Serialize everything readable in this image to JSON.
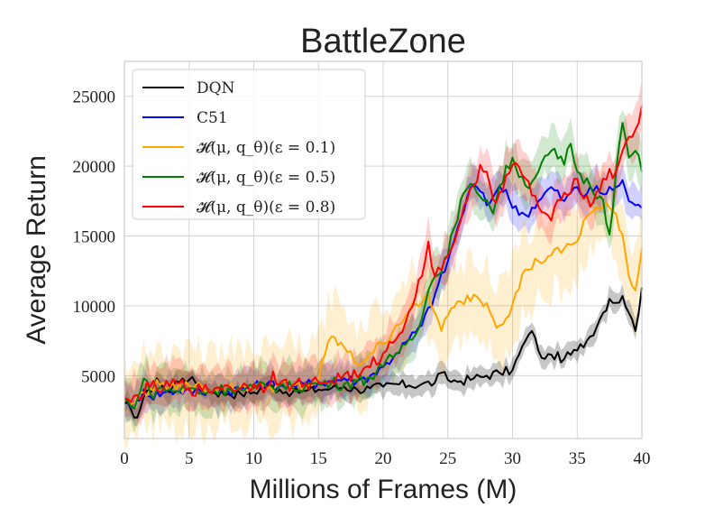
{
  "chart_data": {
    "type": "line",
    "title": "BattleZone",
    "xlabel": "Millions of Frames (M)",
    "ylabel": "Average Return",
    "xlim": [
      0,
      40
    ],
    "ylim": [
      500,
      27500
    ],
    "x_ticks": [
      0,
      5,
      10,
      15,
      20,
      25,
      30,
      35,
      40
    ],
    "y_ticks": [
      5000,
      10000,
      15000,
      20000,
      25000
    ],
    "grid": true,
    "legend_position": "top-left",
    "series": [
      {
        "name": "DQN",
        "color": "#000000",
        "band": 700,
        "points": [
          [
            0,
            3000
          ],
          [
            0.5,
            2600
          ],
          [
            1,
            2000
          ],
          [
            1.5,
            3500
          ],
          [
            2,
            3800
          ],
          [
            2.5,
            4800
          ],
          [
            3,
            4200
          ],
          [
            3.5,
            3800
          ],
          [
            4,
            4600
          ],
          [
            4.5,
            4800
          ],
          [
            5,
            4700
          ],
          [
            5.5,
            4500
          ],
          [
            6,
            4100
          ],
          [
            7,
            3800
          ],
          [
            8,
            3700
          ],
          [
            9,
            3700
          ],
          [
            10,
            3800
          ],
          [
            11,
            4300
          ],
          [
            12,
            4000
          ],
          [
            13,
            3800
          ],
          [
            14,
            3900
          ],
          [
            15,
            4000
          ],
          [
            16,
            4100
          ],
          [
            17,
            4200
          ],
          [
            18,
            4000
          ],
          [
            19,
            4100
          ],
          [
            20,
            4200
          ],
          [
            21,
            4400
          ],
          [
            22,
            4300
          ],
          [
            23,
            4400
          ],
          [
            24,
            4500
          ],
          [
            24.5,
            5200
          ],
          [
            25,
            4700
          ],
          [
            26,
            4600
          ],
          [
            27,
            4800
          ],
          [
            28,
            5000
          ],
          [
            29,
            5200
          ],
          [
            30,
            5400
          ],
          [
            30.5,
            6500
          ],
          [
            31,
            7500
          ],
          [
            31.5,
            8200
          ],
          [
            32,
            6800
          ],
          [
            32.5,
            6200
          ],
          [
            33,
            6500
          ],
          [
            34,
            6200
          ],
          [
            35,
            6800
          ],
          [
            36,
            7800
          ],
          [
            37,
            9500
          ],
          [
            37.5,
            10500
          ],
          [
            38,
            10200
          ],
          [
            38.5,
            10700
          ],
          [
            39,
            9500
          ],
          [
            39.5,
            8200
          ],
          [
            40,
            11300
          ]
        ]
      },
      {
        "name": "C51",
        "color": "#0000ff",
        "band": 1200,
        "points": [
          [
            0,
            3100
          ],
          [
            0.5,
            2700
          ],
          [
            1,
            3200
          ],
          [
            1.5,
            4000
          ],
          [
            2,
            3500
          ],
          [
            3,
            3800
          ],
          [
            4,
            3900
          ],
          [
            5,
            4000
          ],
          [
            6,
            3700
          ],
          [
            7,
            4000
          ],
          [
            8,
            3900
          ],
          [
            9,
            4100
          ],
          [
            10,
            4200
          ],
          [
            11,
            4400
          ],
          [
            12,
            4300
          ],
          [
            13,
            4300
          ],
          [
            14,
            4400
          ],
          [
            15,
            4500
          ],
          [
            16,
            4600
          ],
          [
            17,
            4800
          ],
          [
            18,
            4600
          ],
          [
            19,
            5000
          ],
          [
            20,
            5600
          ],
          [
            21,
            6600
          ],
          [
            22,
            7600
          ],
          [
            23,
            8600
          ],
          [
            24,
            10800
          ],
          [
            25,
            13200
          ],
          [
            26,
            16200
          ],
          [
            26.5,
            17800
          ],
          [
            27,
            18700
          ],
          [
            27.5,
            18200
          ],
          [
            28,
            17200
          ],
          [
            28.5,
            17800
          ],
          [
            29,
            18600
          ],
          [
            29.5,
            18300
          ],
          [
            30,
            17000
          ],
          [
            31,
            16500
          ],
          [
            32,
            17500
          ],
          [
            33,
            18500
          ],
          [
            34,
            17500
          ],
          [
            35,
            18500
          ],
          [
            35.5,
            17800
          ],
          [
            36,
            18500
          ],
          [
            37,
            18000
          ],
          [
            38,
            18500
          ],
          [
            38.5,
            19000
          ],
          [
            39,
            17500
          ],
          [
            39.5,
            17200
          ],
          [
            40,
            17000
          ]
        ]
      },
      {
        "name": "𝓗(μ, q_θ)(ε = 0.1)",
        "color": "#ffa500",
        "band": 2800,
        "points": [
          [
            0,
            3200
          ],
          [
            0.5,
            2900
          ],
          [
            1,
            3400
          ],
          [
            2,
            4100
          ],
          [
            3,
            4500
          ],
          [
            4,
            4000
          ],
          [
            5,
            4300
          ],
          [
            6,
            4200
          ],
          [
            7,
            4000
          ],
          [
            8,
            4100
          ],
          [
            9,
            4200
          ],
          [
            10,
            4300
          ],
          [
            11,
            4100
          ],
          [
            12,
            4400
          ],
          [
            13,
            4300
          ],
          [
            14,
            4200
          ],
          [
            15,
            4700
          ],
          [
            15.5,
            6500
          ],
          [
            16,
            7800
          ],
          [
            17,
            7000
          ],
          [
            18,
            5800
          ],
          [
            19,
            6600
          ],
          [
            20,
            7300
          ],
          [
            21,
            8600
          ],
          [
            22,
            9600
          ],
          [
            23,
            10200
          ],
          [
            23.5,
            10900
          ],
          [
            24,
            9500
          ],
          [
            24.5,
            8200
          ],
          [
            25,
            9300
          ],
          [
            26,
            10300
          ],
          [
            27,
            10800
          ],
          [
            28,
            10200
          ],
          [
            28.5,
            9100
          ],
          [
            29,
            8600
          ],
          [
            30,
            10100
          ],
          [
            31,
            12600
          ],
          [
            32,
            13200
          ],
          [
            33,
            13600
          ],
          [
            34,
            14100
          ],
          [
            35,
            14600
          ],
          [
            35.5,
            16100
          ],
          [
            36,
            16600
          ],
          [
            37,
            17100
          ],
          [
            38,
            16600
          ],
          [
            38.5,
            15100
          ],
          [
            39,
            12100
          ],
          [
            39.5,
            11100
          ],
          [
            40,
            14100
          ]
        ]
      },
      {
        "name": "𝓗(μ, q_θ)(ε = 0.5)",
        "color": "#008000",
        "band": 1500,
        "points": [
          [
            0,
            3300
          ],
          [
            0.5,
            2800
          ],
          [
            1,
            3300
          ],
          [
            1.5,
            4800
          ],
          [
            2,
            3700
          ],
          [
            3,
            4100
          ],
          [
            4,
            3900
          ],
          [
            5,
            4100
          ],
          [
            6,
            3800
          ],
          [
            7,
            3900
          ],
          [
            8,
            4100
          ],
          [
            9,
            4000
          ],
          [
            10,
            4100
          ],
          [
            11,
            4200
          ],
          [
            12,
            4300
          ],
          [
            13,
            4100
          ],
          [
            14,
            4300
          ],
          [
            15,
            4400
          ],
          [
            16,
            4500
          ],
          [
            17,
            4400
          ],
          [
            18,
            4600
          ],
          [
            19,
            4900
          ],
          [
            20,
            5600
          ],
          [
            21,
            6600
          ],
          [
            22,
            7600
          ],
          [
            23,
            9100
          ],
          [
            23.5,
            11100
          ],
          [
            24,
            12100
          ],
          [
            25,
            13600
          ],
          [
            25.5,
            15600
          ],
          [
            26,
            17600
          ],
          [
            27,
            18600
          ],
          [
            28,
            17600
          ],
          [
            28.5,
            16600
          ],
          [
            29,
            18600
          ],
          [
            30,
            20600
          ],
          [
            31,
            18600
          ],
          [
            32,
            19600
          ],
          [
            33,
            21100
          ],
          [
            34,
            20100
          ],
          [
            34.5,
            21600
          ],
          [
            35,
            19600
          ],
          [
            36,
            18600
          ],
          [
            37,
            17600
          ],
          [
            37.5,
            15100
          ],
          [
            38,
            19600
          ],
          [
            38.5,
            23100
          ],
          [
            39,
            20600
          ],
          [
            39.5,
            21100
          ],
          [
            40,
            19600
          ]
        ]
      },
      {
        "name": "𝓗(μ, q_θ)(ε = 0.8)",
        "color": "#ff0000",
        "band": 1500,
        "points": [
          [
            0,
            3400
          ],
          [
            0.5,
            3100
          ],
          [
            1,
            3600
          ],
          [
            2,
            4200
          ],
          [
            3,
            4000
          ],
          [
            4,
            4500
          ],
          [
            5,
            4100
          ],
          [
            6,
            3900
          ],
          [
            7,
            4100
          ],
          [
            8,
            4300
          ],
          [
            9,
            4100
          ],
          [
            10,
            4400
          ],
          [
            11,
            4200
          ],
          [
            11.5,
            5300
          ],
          [
            12,
            4400
          ],
          [
            13,
            4300
          ],
          [
            14,
            4500
          ],
          [
            15,
            4500
          ],
          [
            16,
            4600
          ],
          [
            17,
            5100
          ],
          [
            18,
            4900
          ],
          [
            19,
            5600
          ],
          [
            20,
            6600
          ],
          [
            21,
            7600
          ],
          [
            22,
            9600
          ],
          [
            23,
            12100
          ],
          [
            23.5,
            14600
          ],
          [
            24,
            12100
          ],
          [
            25,
            13600
          ],
          [
            26,
            16100
          ],
          [
            27,
            18600
          ],
          [
            27.5,
            20100
          ],
          [
            28,
            19600
          ],
          [
            28.5,
            17600
          ],
          [
            29,
            18100
          ],
          [
            30,
            20100
          ],
          [
            31,
            19100
          ],
          [
            32,
            17100
          ],
          [
            33,
            16100
          ],
          [
            34,
            18100
          ],
          [
            35,
            19100
          ],
          [
            36,
            17100
          ],
          [
            37,
            19100
          ],
          [
            38,
            19600
          ],
          [
            38.5,
            21100
          ],
          [
            39,
            22100
          ],
          [
            39.5,
            22600
          ],
          [
            40,
            24300
          ]
        ]
      }
    ]
  }
}
